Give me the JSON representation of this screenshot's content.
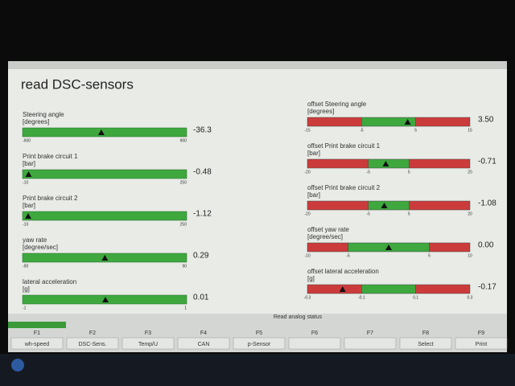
{
  "title": "read DSC-sensors",
  "left_gauges": [
    {
      "label": "Steering angle",
      "unit": "[degrees]",
      "min": "-900",
      "max": "900",
      "value": "-36.3"
    },
    {
      "label": "Print brake circuit 1",
      "unit": "[bar]",
      "min": "-10",
      "max": "250",
      "value": "-0.48"
    },
    {
      "label": "Print brake circuit 2",
      "unit": "[bar]",
      "min": "-10",
      "max": "250",
      "value": "-1.12"
    },
    {
      "label": "yaw rate",
      "unit": "[degree/sec]",
      "min": "-90",
      "max": "90",
      "value": "0.29"
    },
    {
      "label": "lateral acceleration",
      "unit": "[g]",
      "min": "-1",
      "max": "1",
      "value": "0.01"
    }
  ],
  "right_gauges": [
    {
      "label": "offset Steering angle",
      "unit": "[degrees]",
      "ticks": [
        "-15",
        "-5",
        "5",
        "15"
      ],
      "value": "3.50"
    },
    {
      "label": "offset Print brake circuit 1",
      "unit": "[bar]",
      "ticks": [
        "-20",
        "-5",
        "5",
        "20"
      ],
      "value": "-0.71"
    },
    {
      "label": "offset Print brake circuit 2",
      "unit": "[bar]",
      "ticks": [
        "-20",
        "-5",
        "5",
        "20"
      ],
      "value": "-1.08"
    },
    {
      "label": "offset yaw rate",
      "unit": "[degree/sec]",
      "ticks": [
        "-10",
        "-5",
        "5",
        "10"
      ],
      "value": "0.00"
    },
    {
      "label": "offset lateral acceleration",
      "unit": "[g]",
      "ticks": [
        "-0.3",
        "-0.1",
        "0.1",
        "0.3"
      ],
      "value": "-0.17"
    }
  ],
  "status": "Read analog status",
  "keys": [
    {
      "key": "F1",
      "label": "wh-speed"
    },
    {
      "key": "F2",
      "label": "DSC-Sens."
    },
    {
      "key": "F3",
      "label": "Temp/U"
    },
    {
      "key": "F4",
      "label": "CAN"
    },
    {
      "key": "F5",
      "label": "p-Sensor"
    },
    {
      "key": "F6"
    },
    {
      "key": "F7"
    },
    {
      "key": "F8",
      "label": "Select"
    },
    {
      "key": "F9",
      "label": "Print"
    }
  ]
}
